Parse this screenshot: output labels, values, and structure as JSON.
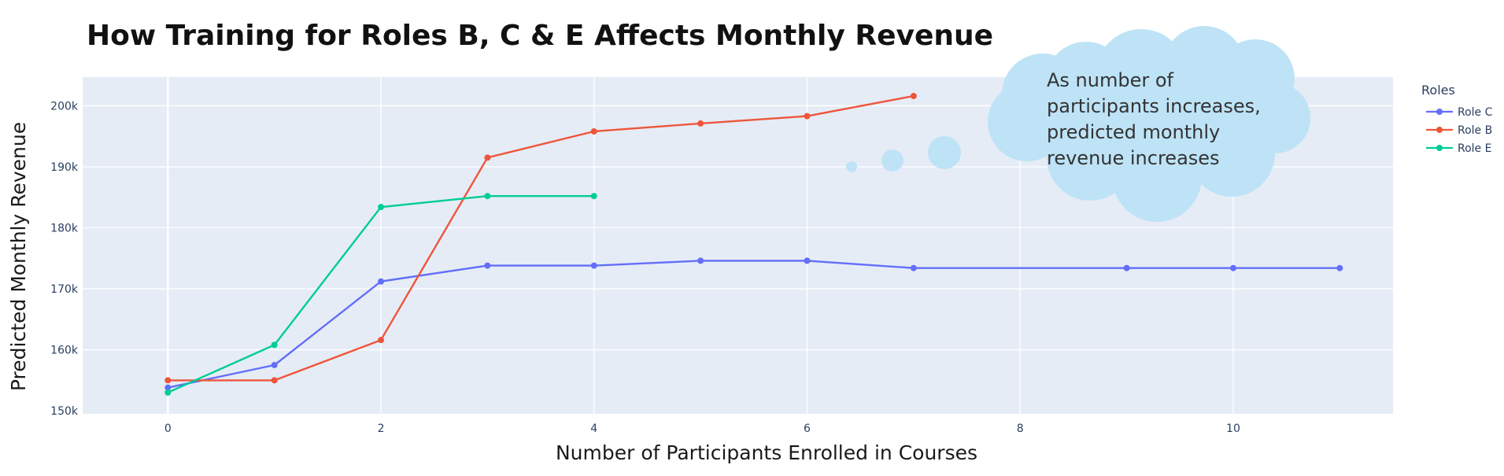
{
  "chart_data": {
    "type": "line",
    "title": "How Training for Roles B, C & E Affects Monthly Revenue",
    "xlabel": "Number of Participants Enrolled in Courses",
    "ylabel": "Predicted Monthly Revenue",
    "xlim": [
      -0.8,
      11.5
    ],
    "ylim": [
      149500,
      204700
    ],
    "x_ticks": [
      0,
      2,
      4,
      6,
      8,
      10
    ],
    "x_tick_labels": [
      "0",
      "2",
      "4",
      "6",
      "8",
      "10"
    ],
    "y_ticks": [
      150000,
      160000,
      170000,
      180000,
      190000,
      200000
    ],
    "y_tick_labels": [
      "150k",
      "160k",
      "170k",
      "180k",
      "190k",
      "200k"
    ],
    "grid": true,
    "legend_title": "Roles",
    "legend_position": "right",
    "series": [
      {
        "name": "Role C",
        "color": "#636efa",
        "x": [
          0,
          1,
          2,
          3,
          4,
          5,
          6,
          7,
          9,
          10,
          11
        ],
        "y": [
          153800,
          157500,
          171200,
          173800,
          173800,
          174600,
          174600,
          173400,
          173400,
          173400,
          173400
        ]
      },
      {
        "name": "Role B",
        "color": "#ef553b",
        "x": [
          0,
          1,
          2,
          3,
          4,
          5,
          6,
          7
        ],
        "y": [
          155000,
          155000,
          161600,
          191500,
          195800,
          197100,
          198300,
          201600
        ]
      },
      {
        "name": "Role E",
        "color": "#00cc96",
        "x": [
          0,
          1,
          2,
          3,
          4
        ],
        "y": [
          153000,
          160800,
          183400,
          185200,
          185200
        ]
      }
    ],
    "annotation": {
      "lines": [
        "As number of",
        "participants increases,",
        "predicted monthly",
        "revenue increases"
      ],
      "style": "thought-cloud",
      "color": "#bee3f6"
    }
  }
}
